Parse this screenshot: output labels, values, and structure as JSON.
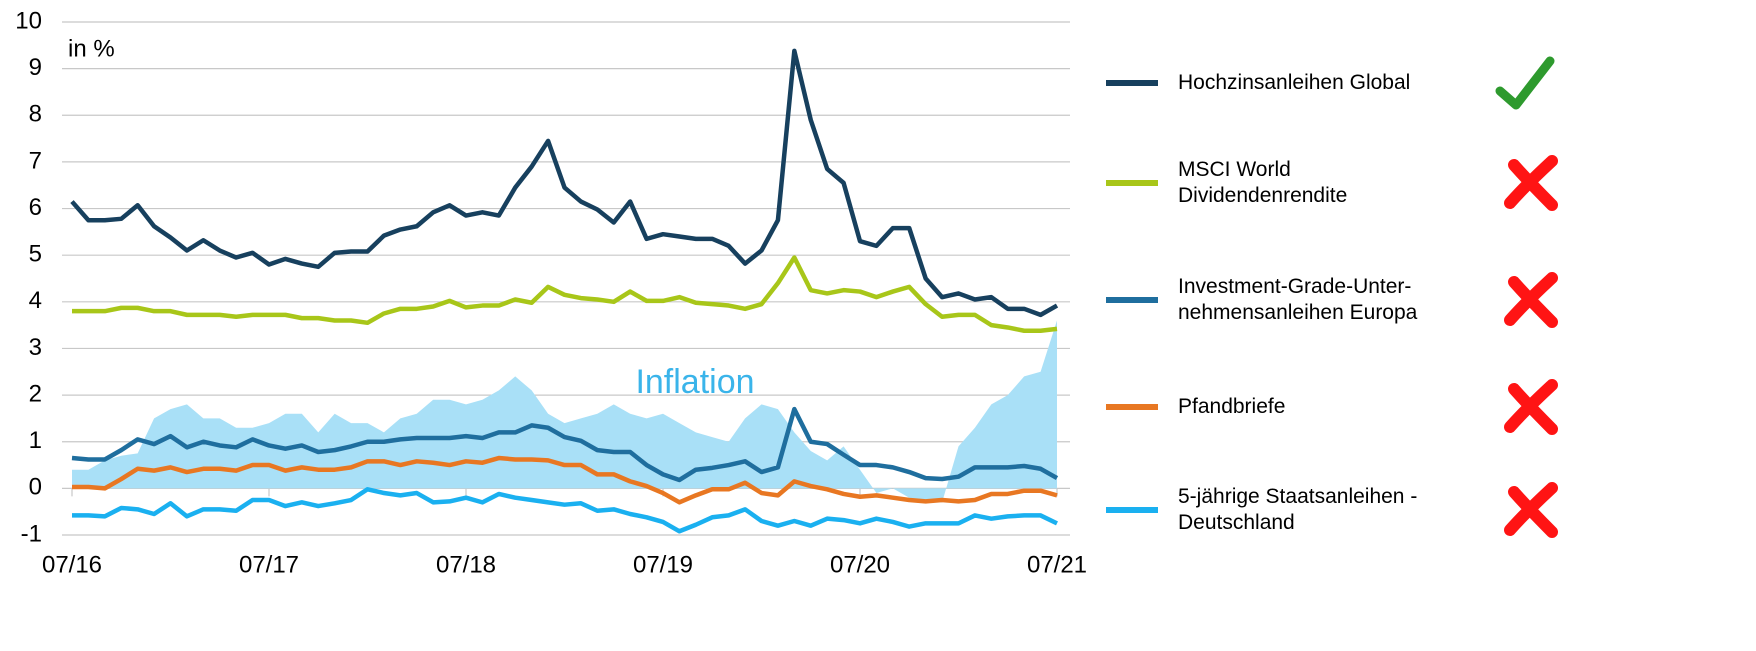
{
  "chart_data": {
    "type": "line",
    "y_label": "in %",
    "categories": [
      "07/16",
      null,
      null,
      null,
      null,
      null,
      null,
      null,
      null,
      null,
      null,
      null,
      "07/17",
      null,
      null,
      null,
      null,
      null,
      null,
      null,
      null,
      null,
      null,
      null,
      "07/18",
      null,
      null,
      null,
      null,
      null,
      null,
      null,
      null,
      null,
      null,
      null,
      "07/19",
      null,
      null,
      null,
      null,
      null,
      null,
      null,
      null,
      null,
      null,
      null,
      "07/20",
      null,
      null,
      null,
      null,
      null,
      null,
      null,
      null,
      null,
      null,
      null,
      "07/21"
    ],
    "ylim": [
      -1,
      10
    ],
    "yticks": [
      -1,
      0,
      1,
      2,
      3,
      4,
      5,
      6,
      7,
      8,
      9,
      10
    ],
    "grid": true,
    "series": [
      {
        "name": "Inflation",
        "type": "area",
        "color": "#a9e0f7",
        "label_color": "#3ab4ea",
        "values": [
          0.4,
          0.4,
          0.6,
          0.7,
          0.75,
          1.5,
          1.7,
          1.8,
          1.5,
          1.5,
          1.3,
          1.3,
          1.4,
          1.6,
          1.6,
          1.2,
          1.6,
          1.4,
          1.4,
          1.2,
          1.5,
          1.6,
          1.9,
          1.9,
          1.8,
          1.9,
          2.1,
          2.4,
          2.1,
          1.6,
          1.4,
          1.5,
          1.6,
          1.8,
          1.6,
          1.5,
          1.6,
          1.4,
          1.2,
          1.1,
          1.0,
          1.5,
          1.8,
          1.7,
          1.2,
          0.8,
          0.6,
          0.9,
          0.4,
          -0.1,
          0.0,
          -0.2,
          -0.3,
          -0.3,
          0.9,
          1.3,
          1.8,
          2.0,
          2.4,
          2.5,
          3.6
        ]
      },
      {
        "name": "Hochzinsanleihen Global",
        "color": "#17405e",
        "icon": "check",
        "values": [
          6.15,
          5.75,
          5.75,
          5.78,
          6.07,
          5.62,
          5.38,
          5.1,
          5.32,
          5.1,
          4.95,
          5.05,
          4.8,
          4.92,
          4.82,
          4.75,
          5.05,
          5.08,
          5.08,
          5.42,
          5.55,
          5.62,
          5.92,
          6.07,
          5.85,
          5.92,
          5.85,
          6.45,
          6.9,
          7.45,
          6.45,
          6.15,
          5.98,
          5.7,
          6.15,
          5.35,
          5.45,
          5.4,
          5.35,
          5.35,
          5.2,
          4.82,
          5.1,
          5.75,
          9.38,
          7.9,
          6.85,
          6.55,
          5.3,
          5.2,
          5.58,
          5.58,
          4.5,
          4.1,
          4.18,
          4.05,
          4.1,
          3.85,
          3.85,
          3.72,
          3.92
        ]
      },
      {
        "name": "MSCI World\nDividendenrendite",
        "color": "#a8c619",
        "icon": "cross",
        "values": [
          3.8,
          3.8,
          3.8,
          3.87,
          3.87,
          3.8,
          3.8,
          3.72,
          3.72,
          3.72,
          3.68,
          3.72,
          3.72,
          3.72,
          3.65,
          3.65,
          3.6,
          3.6,
          3.55,
          3.75,
          3.85,
          3.85,
          3.9,
          4.02,
          3.88,
          3.92,
          3.92,
          4.05,
          3.98,
          4.32,
          4.15,
          4.08,
          4.05,
          4.0,
          4.22,
          4.02,
          4.02,
          4.1,
          3.98,
          3.95,
          3.92,
          3.85,
          3.95,
          4.4,
          4.95,
          4.25,
          4.18,
          4.25,
          4.22,
          4.1,
          4.22,
          4.32,
          3.95,
          3.68,
          3.72,
          3.72,
          3.5,
          3.45,
          3.38,
          3.38,
          3.42
        ]
      },
      {
        "name": "Investment-Grade-Unter-\nnehmensanleihen Europa",
        "color": "#1f6e9e",
        "icon": "cross",
        "values": [
          0.65,
          0.62,
          0.62,
          0.82,
          1.05,
          0.95,
          1.12,
          0.88,
          1.0,
          0.92,
          0.88,
          1.05,
          0.92,
          0.85,
          0.92,
          0.78,
          0.82,
          0.9,
          1.0,
          1.0,
          1.05,
          1.08,
          1.08,
          1.08,
          1.12,
          1.08,
          1.2,
          1.2,
          1.35,
          1.3,
          1.1,
          1.02,
          0.82,
          0.78,
          0.78,
          0.5,
          0.3,
          0.18,
          0.4,
          0.44,
          0.5,
          0.58,
          0.35,
          0.45,
          1.7,
          1.0,
          0.95,
          0.72,
          0.5,
          0.5,
          0.45,
          0.35,
          0.22,
          0.2,
          0.25,
          0.45,
          0.45,
          0.45,
          0.48,
          0.42,
          0.22
        ]
      },
      {
        "name": "Pfandbriefe",
        "color": "#e87722",
        "icon": "cross",
        "values": [
          0.03,
          0.03,
          0.0,
          0.2,
          0.42,
          0.38,
          0.45,
          0.35,
          0.42,
          0.42,
          0.38,
          0.5,
          0.5,
          0.38,
          0.45,
          0.4,
          0.4,
          0.45,
          0.58,
          0.58,
          0.5,
          0.58,
          0.55,
          0.5,
          0.58,
          0.55,
          0.65,
          0.62,
          0.62,
          0.6,
          0.5,
          0.5,
          0.3,
          0.3,
          0.15,
          0.05,
          -0.1,
          -0.3,
          -0.15,
          -0.02,
          -0.02,
          0.12,
          -0.1,
          -0.15,
          0.15,
          0.05,
          -0.02,
          -0.12,
          -0.18,
          -0.15,
          -0.2,
          -0.25,
          -0.28,
          -0.25,
          -0.28,
          -0.25,
          -0.12,
          -0.12,
          -0.05,
          -0.05,
          -0.15
        ]
      },
      {
        "name": "5-jährige Staatsanleihen -\nDeutschland",
        "color": "#1ab0f0",
        "icon": "cross",
        "values": [
          -0.58,
          -0.58,
          -0.6,
          -0.42,
          -0.45,
          -0.55,
          -0.32,
          -0.6,
          -0.45,
          -0.45,
          -0.48,
          -0.25,
          -0.25,
          -0.38,
          -0.3,
          -0.38,
          -0.32,
          -0.25,
          -0.02,
          -0.1,
          -0.15,
          -0.1,
          -0.3,
          -0.28,
          -0.2,
          -0.3,
          -0.12,
          -0.2,
          -0.25,
          -0.3,
          -0.35,
          -0.32,
          -0.48,
          -0.45,
          -0.55,
          -0.62,
          -0.72,
          -0.92,
          -0.78,
          -0.62,
          -0.58,
          -0.45,
          -0.7,
          -0.8,
          -0.7,
          -0.8,
          -0.65,
          -0.68,
          -0.75,
          -0.65,
          -0.72,
          -0.82,
          -0.75,
          -0.75,
          -0.75,
          -0.58,
          -0.65,
          -0.6,
          -0.58,
          -0.58,
          -0.75
        ]
      }
    ]
  }
}
